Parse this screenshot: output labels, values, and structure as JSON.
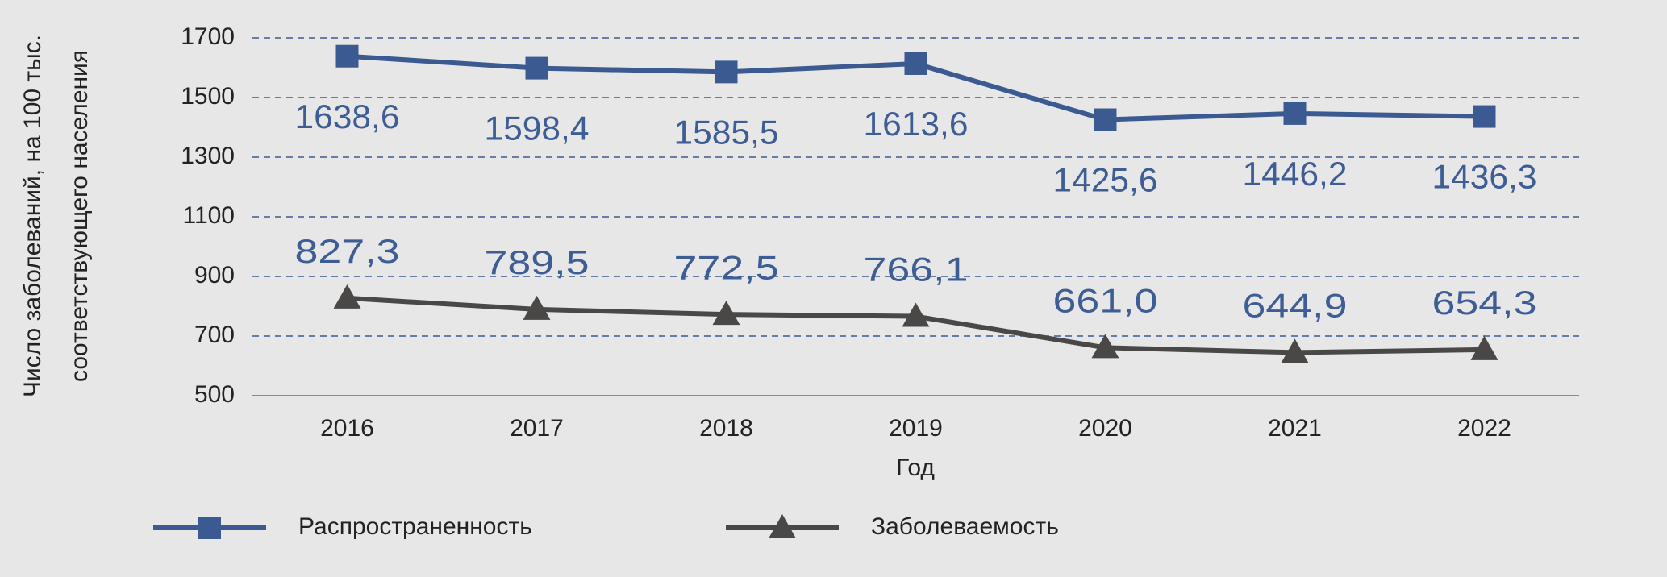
{
  "chart_data": {
    "type": "line",
    "ylabel": [
      "Число заболеваний, на 100 тыс.",
      "соответствующего населения"
    ],
    "xlabel": "Год",
    "categories": [
      "2016",
      "2017",
      "2018",
      "2019",
      "2020",
      "2021",
      "2022"
    ],
    "series": [
      {
        "name": "Распространенность",
        "color": "#3b5a92",
        "marker": "square",
        "values": [
          1638.6,
          1598.4,
          1585.5,
          1613.6,
          1425.6,
          1446.2,
          1436.3
        ],
        "value_labels": [
          "1638,6",
          "1598,4",
          "1585,5",
          "1613,6",
          "1425,6",
          "1446,2",
          "1436,3"
        ]
      },
      {
        "name": "Заболеваемость",
        "color": "#4a4846",
        "marker": "triangle",
        "values": [
          827.3,
          789.5,
          772.5,
          766.1,
          661.0,
          644.9,
          654.3
        ],
        "value_labels": [
          "827,3",
          "789,5",
          "772,5",
          "766,1",
          "661,0",
          "644,9",
          "654,3"
        ]
      }
    ],
    "ylim": [
      500,
      1700
    ],
    "yticks": [
      500,
      700,
      900,
      1100,
      1300,
      1500,
      1700
    ],
    "grid": true,
    "legend": "bottom"
  }
}
